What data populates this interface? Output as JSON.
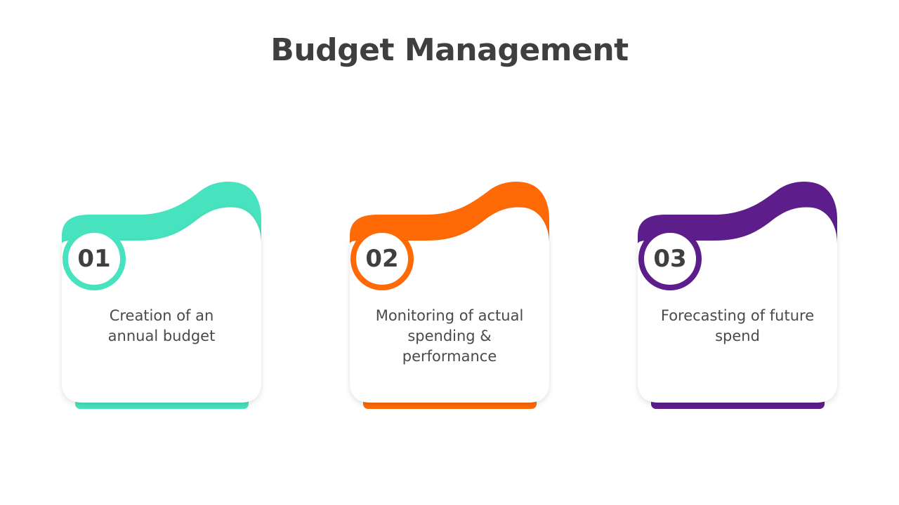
{
  "title": "Budget Management",
  "cards": [
    {
      "number": "01",
      "text": "Creation of an annual budget",
      "color": "#47e3bf"
    },
    {
      "number": "02",
      "text": "Monitoring of actual spending & performance",
      "color": "#ff6a07"
    },
    {
      "number": "03",
      "text": "Forecasting of future spend",
      "color": "#5d1e8c"
    }
  ]
}
